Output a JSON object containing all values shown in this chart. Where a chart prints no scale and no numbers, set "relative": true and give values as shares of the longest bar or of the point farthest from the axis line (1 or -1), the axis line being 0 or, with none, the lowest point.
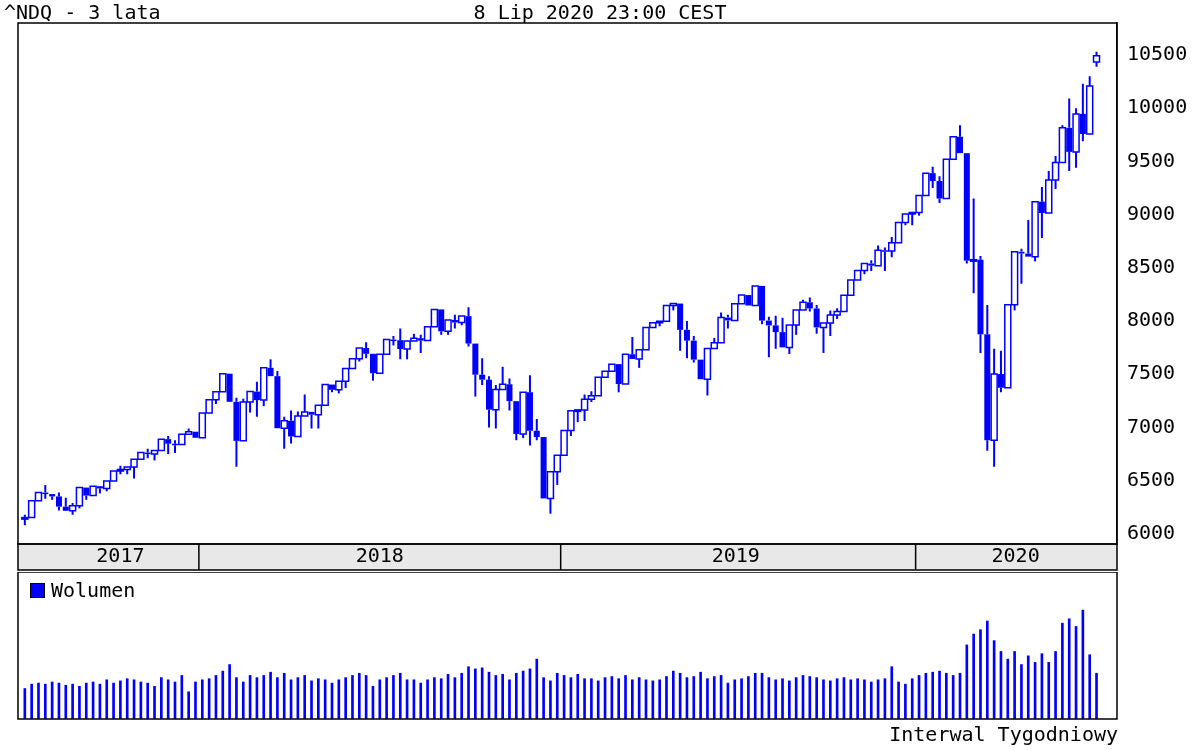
{
  "chart_data": [
    {
      "type": "candlestick",
      "title": "^NDQ - 3 lata",
      "subtitle": "8 Lip 2020 23:00 CEST",
      "color": "#0000ff",
      "x": [
        "2017-07-03",
        "2017-07-10",
        "2017-07-17",
        "2017-07-24",
        "2017-07-31",
        "2017-08-07",
        "2017-08-14",
        "2017-08-21",
        "2017-08-28",
        "2017-09-04",
        "2017-09-11",
        "2017-09-18",
        "2017-09-25",
        "2017-10-02",
        "2017-10-09",
        "2017-10-16",
        "2017-10-23",
        "2017-10-30",
        "2017-11-06",
        "2017-11-13",
        "2017-11-20",
        "2017-11-27",
        "2017-12-04",
        "2017-12-11",
        "2017-12-18",
        "2017-12-25",
        "2018-01-01",
        "2018-01-08",
        "2018-01-15",
        "2018-01-22",
        "2018-01-29",
        "2018-02-05",
        "2018-02-12",
        "2018-02-19",
        "2018-02-26",
        "2018-03-05",
        "2018-03-12",
        "2018-03-19",
        "2018-03-26",
        "2018-04-02",
        "2018-04-09",
        "2018-04-16",
        "2018-04-23",
        "2018-04-30",
        "2018-05-07",
        "2018-05-14",
        "2018-05-21",
        "2018-05-28",
        "2018-06-04",
        "2018-06-11",
        "2018-06-18",
        "2018-06-25",
        "2018-07-02",
        "2018-07-09",
        "2018-07-16",
        "2018-07-23",
        "2018-07-30",
        "2018-08-06",
        "2018-08-13",
        "2018-08-20",
        "2018-08-27",
        "2018-09-03",
        "2018-09-10",
        "2018-09-17",
        "2018-09-24",
        "2018-10-01",
        "2018-10-08",
        "2018-10-15",
        "2018-10-22",
        "2018-10-29",
        "2018-11-05",
        "2018-11-12",
        "2018-11-19",
        "2018-11-26",
        "2018-12-03",
        "2018-12-10",
        "2018-12-17",
        "2018-12-24",
        "2018-12-31",
        "2019-01-07",
        "2019-01-14",
        "2019-01-21",
        "2019-01-28",
        "2019-02-04",
        "2019-02-11",
        "2019-02-18",
        "2019-02-25",
        "2019-03-04",
        "2019-03-11",
        "2019-03-18",
        "2019-03-25",
        "2019-04-01",
        "2019-04-08",
        "2019-04-15",
        "2019-04-22",
        "2019-04-29",
        "2019-05-06",
        "2019-05-13",
        "2019-05-20",
        "2019-05-27",
        "2019-06-03",
        "2019-06-10",
        "2019-06-17",
        "2019-06-24",
        "2019-07-01",
        "2019-07-08",
        "2019-07-15",
        "2019-07-22",
        "2019-07-29",
        "2019-08-05",
        "2019-08-12",
        "2019-08-19",
        "2019-08-26",
        "2019-09-02",
        "2019-09-09",
        "2019-09-16",
        "2019-09-23",
        "2019-09-30",
        "2019-10-07",
        "2019-10-14",
        "2019-10-21",
        "2019-10-28",
        "2019-11-04",
        "2019-11-11",
        "2019-11-18",
        "2019-11-25",
        "2019-12-02",
        "2019-12-09",
        "2019-12-16",
        "2019-12-23",
        "2019-12-30",
        "2020-01-06",
        "2020-01-13",
        "2020-01-20",
        "2020-01-27",
        "2020-02-03",
        "2020-02-10",
        "2020-02-17",
        "2020-02-24",
        "2020-03-02",
        "2020-03-09",
        "2020-03-16",
        "2020-03-23",
        "2020-03-30",
        "2020-04-06",
        "2020-04-13",
        "2020-04-20",
        "2020-04-27",
        "2020-05-04",
        "2020-05-11",
        "2020-05-18",
        "2020-05-25",
        "2020-06-01",
        "2020-06-08",
        "2020-06-15",
        "2020-06-22",
        "2020-06-29",
        "2020-07-06"
      ],
      "ohlc": [
        [
          6140,
          6180,
          6080,
          6153
        ],
        [
          6153,
          6320,
          6150,
          6312
        ],
        [
          6312,
          6390,
          6300,
          6388
        ],
        [
          6388,
          6460,
          6330,
          6374
        ],
        [
          6374,
          6374,
          6320,
          6352
        ],
        [
          6352,
          6390,
          6220,
          6256
        ],
        [
          6256,
          6340,
          6200,
          6217
        ],
        [
          6217,
          6290,
          6180,
          6265
        ],
        [
          6265,
          6440,
          6240,
          6435
        ],
        [
          6435,
          6435,
          6320,
          6360
        ],
        [
          6360,
          6460,
          6360,
          6448
        ],
        [
          6448,
          6448,
          6380,
          6427
        ],
        [
          6427,
          6500,
          6400,
          6496
        ],
        [
          6496,
          6600,
          6490,
          6590
        ],
        [
          6590,
          6640,
          6560,
          6606
        ],
        [
          6606,
          6640,
          6560,
          6629
        ],
        [
          6629,
          6710,
          6520,
          6701
        ],
        [
          6701,
          6770,
          6690,
          6764
        ],
        [
          6764,
          6800,
          6710,
          6751
        ],
        [
          6751,
          6800,
          6690,
          6783
        ],
        [
          6783,
          6900,
          6780,
          6890
        ],
        [
          6890,
          6920,
          6750,
          6847
        ],
        [
          6847,
          6880,
          6760,
          6840
        ],
        [
          6840,
          6950,
          6830,
          6936
        ],
        [
          6936,
          6990,
          6930,
          6960
        ],
        [
          6960,
          6970,
          6900,
          6903
        ],
        [
          6903,
          7140,
          6900,
          7136
        ],
        [
          7136,
          7270,
          7120,
          7261
        ],
        [
          7261,
          7340,
          7220,
          7336
        ],
        [
          7336,
          7510,
          7330,
          7505
        ],
        [
          7505,
          7510,
          7230,
          7241
        ],
        [
          7241,
          7280,
          6630,
          6874
        ],
        [
          6874,
          7270,
          6874,
          7239
        ],
        [
          7239,
          7350,
          7140,
          7337
        ],
        [
          7337,
          7430,
          7100,
          7257
        ],
        [
          7257,
          7570,
          7200,
          7560
        ],
        [
          7560,
          7640,
          7470,
          7482
        ],
        [
          7482,
          7530,
          6990,
          6993
        ],
        [
          6993,
          7100,
          6800,
          7063
        ],
        [
          7063,
          7160,
          6850,
          6915
        ],
        [
          6915,
          7150,
          6900,
          7107
        ],
        [
          7107,
          7310,
          7100,
          7146
        ],
        [
          7146,
          7160,
          6990,
          7120
        ],
        [
          7120,
          7220,
          6990,
          7209
        ],
        [
          7209,
          7410,
          7200,
          7403
        ],
        [
          7403,
          7410,
          7330,
          7354
        ],
        [
          7354,
          7450,
          7320,
          7433
        ],
        [
          7433,
          7560,
          7370,
          7554
        ],
        [
          7554,
          7660,
          7540,
          7646
        ],
        [
          7646,
          7760,
          7620,
          7746
        ],
        [
          7746,
          7800,
          7650,
          7692
        ],
        [
          7692,
          7700,
          7440,
          7510
        ],
        [
          7510,
          7688,
          7510,
          7688
        ],
        [
          7688,
          7830,
          7680,
          7826
        ],
        [
          7826,
          7860,
          7770,
          7820
        ],
        [
          7820,
          7930,
          7640,
          7737
        ],
        [
          7737,
          7820,
          7640,
          7812
        ],
        [
          7812,
          7880,
          7800,
          7839
        ],
        [
          7839,
          7870,
          7700,
          7816
        ],
        [
          7816,
          7950,
          7810,
          7945
        ],
        [
          7945,
          8109,
          7945,
          8109
        ],
        [
          8109,
          8110,
          7870,
          7903
        ],
        [
          7903,
          8010,
          7870,
          8010
        ],
        [
          8010,
          8060,
          7930,
          7986
        ],
        [
          7986,
          8050,
          7960,
          8046
        ],
        [
          8046,
          8130,
          7760,
          7788
        ],
        [
          7788,
          7800,
          7290,
          7496
        ],
        [
          7496,
          7650,
          7400,
          7449
        ],
        [
          7449,
          7480,
          7000,
          7167
        ],
        [
          7167,
          7400,
          6990,
          7357
        ],
        [
          7357,
          7570,
          7340,
          7406
        ],
        [
          7406,
          7460,
          7160,
          7247
        ],
        [
          7247,
          7260,
          6880,
          6939
        ],
        [
          6939,
          7340,
          6900,
          7331
        ],
        [
          7331,
          7490,
          6830,
          6969
        ],
        [
          6969,
          7080,
          6880,
          6910
        ],
        [
          6910,
          6920,
          6330,
          6333
        ],
        [
          6333,
          6590,
          6190,
          6584
        ],
        [
          6584,
          6739,
          6460,
          6739
        ],
        [
          6739,
          6990,
          6720,
          6971
        ],
        [
          6971,
          7160,
          6920,
          7157
        ],
        [
          7157,
          7180,
          7050,
          7165
        ],
        [
          7165,
          7310,
          7060,
          7264
        ],
        [
          7264,
          7340,
          7240,
          7298
        ],
        [
          7298,
          7480,
          7280,
          7472
        ],
        [
          7472,
          7528,
          7472,
          7528
        ],
        [
          7528,
          7600,
          7520,
          7595
        ],
        [
          7595,
          7600,
          7330,
          7408
        ],
        [
          7408,
          7700,
          7400,
          7688
        ],
        [
          7688,
          7850,
          7640,
          7643
        ],
        [
          7643,
          7740,
          7560,
          7729
        ],
        [
          7729,
          7940,
          7720,
          7939
        ],
        [
          7939,
          8000,
          7920,
          7984
        ],
        [
          7984,
          7998,
          7950,
          7998
        ],
        [
          7998,
          8150,
          7980,
          8146
        ],
        [
          8146,
          8180,
          8100,
          8164
        ],
        [
          8164,
          8170,
          7720,
          7917
        ],
        [
          7917,
          8000,
          7650,
          7816
        ],
        [
          7816,
          7860,
          7610,
          7637
        ],
        [
          7637,
          7637,
          7450,
          7453
        ],
        [
          7453,
          7750,
          7300,
          7742
        ],
        [
          7742,
          7840,
          7730,
          7797
        ],
        [
          7797,
          8080,
          7790,
          8032
        ],
        [
          8032,
          8060,
          7930,
          8006
        ],
        [
          8006,
          8170,
          8000,
          8162
        ],
        [
          8162,
          8244,
          8162,
          8244
        ],
        [
          8244,
          8260,
          8130,
          8146
        ],
        [
          8146,
          8340,
          8140,
          8330
        ],
        [
          8330,
          8340,
          7970,
          8004
        ],
        [
          8004,
          8040,
          7660,
          7959
        ],
        [
          7959,
          8050,
          7740,
          7896
        ],
        [
          7896,
          8030,
          7740,
          7752
        ],
        [
          7752,
          7970,
          7690,
          7963
        ],
        [
          7963,
          8120,
          7870,
          8104
        ],
        [
          8104,
          8200,
          8090,
          8176
        ],
        [
          8176,
          8220,
          8090,
          8118
        ],
        [
          8118,
          8150,
          7880,
          7940
        ],
        [
          7940,
          8000,
          7700,
          7982
        ],
        [
          7982,
          8100,
          7860,
          8057
        ],
        [
          8057,
          8120,
          8020,
          8089
        ],
        [
          8089,
          8260,
          8080,
          8243
        ],
        [
          8243,
          8390,
          8230,
          8386
        ],
        [
          8386,
          8480,
          8370,
          8475
        ],
        [
          8475,
          8540,
          8440,
          8540
        ],
        [
          8540,
          8570,
          8470,
          8520
        ],
        [
          8520,
          8710,
          8510,
          8665
        ],
        [
          8665,
          8690,
          8470,
          8657
        ],
        [
          8657,
          8790,
          8600,
          8735
        ],
        [
          8735,
          8940,
          8730,
          8925
        ],
        [
          8925,
          9020,
          8900,
          9006
        ],
        [
          9006,
          9020,
          8900,
          9020
        ],
        [
          9020,
          9179,
          8990,
          9179
        ],
        [
          9179,
          9390,
          9170,
          9389
        ],
        [
          9389,
          9450,
          9250,
          9315
        ],
        [
          9315,
          9360,
          9110,
          9151
        ],
        [
          9151,
          9530,
          9140,
          9520
        ],
        [
          9520,
          9731,
          9520,
          9731
        ],
        [
          9731,
          9840,
          9560,
          9577
        ],
        [
          9577,
          9580,
          8540,
          8567
        ],
        [
          8567,
          9150,
          8260,
          8576
        ],
        [
          8576,
          8610,
          7700,
          7875
        ],
        [
          7875,
          8150,
          6780,
          6880
        ],
        [
          6880,
          7740,
          6630,
          7502
        ],
        [
          7502,
          7720,
          7330,
          7373
        ],
        [
          7373,
          8160,
          7370,
          8153
        ],
        [
          8153,
          8660,
          8100,
          8650
        ],
        [
          8650,
          8680,
          8350,
          8634
        ],
        [
          8634,
          8950,
          8600,
          8605
        ],
        [
          8605,
          9130,
          8560,
          9121
        ],
        [
          9121,
          9260,
          8780,
          9015
        ],
        [
          9015,
          9410,
          9000,
          9325
        ],
        [
          9325,
          9550,
          9240,
          9490
        ],
        [
          9490,
          9840,
          9480,
          9815
        ],
        [
          9815,
          10090,
          9410,
          9589
        ],
        [
          9589,
          10000,
          9440,
          9946
        ],
        [
          9946,
          10230,
          9690,
          9757
        ],
        [
          9757,
          10300,
          9740,
          10208
        ],
        [
          10433,
          10530,
          10390,
          10492
        ]
      ],
      "xlim": [
        "2017-06-26",
        "2020-07-27"
      ],
      "xticks": [
        {
          "value": "2017-10-09",
          "label": "2017"
        },
        {
          "value": "2018-07-02",
          "label": "2018"
        },
        {
          "value": "2019-07-02",
          "label": "2019"
        },
        {
          "value": "2020-04-14",
          "label": "2020"
        }
      ],
      "ylim": [
        5905,
        10800
      ],
      "yticks": [
        6000,
        6500,
        7000,
        7500,
        8000,
        8500,
        9000,
        9500,
        10000,
        10500
      ]
    },
    {
      "type": "bar",
      "relative": true,
      "legend": "top left",
      "tick_labels": false,
      "xlim": [
        "2017-06-26",
        "2020-07-27"
      ],
      "x": [
        "2017-07-03",
        "2017-07-10",
        "2017-07-17",
        "2017-07-24",
        "2017-07-31",
        "2017-08-07",
        "2017-08-14",
        "2017-08-21",
        "2017-08-28",
        "2017-09-04",
        "2017-09-11",
        "2017-09-18",
        "2017-09-25",
        "2017-10-02",
        "2017-10-09",
        "2017-10-16",
        "2017-10-23",
        "2017-10-30",
        "2017-11-06",
        "2017-11-13",
        "2017-11-20",
        "2017-11-27",
        "2017-12-04",
        "2017-12-11",
        "2017-12-18",
        "2017-12-25",
        "2018-01-01",
        "2018-01-08",
        "2018-01-15",
        "2018-01-22",
        "2018-01-29",
        "2018-02-05",
        "2018-02-12",
        "2018-02-19",
        "2018-02-26",
        "2018-03-05",
        "2018-03-12",
        "2018-03-19",
        "2018-03-26",
        "2018-04-02",
        "2018-04-09",
        "2018-04-16",
        "2018-04-23",
        "2018-04-30",
        "2018-05-07",
        "2018-05-14",
        "2018-05-21",
        "2018-05-28",
        "2018-06-04",
        "2018-06-11",
        "2018-06-18",
        "2018-06-25",
        "2018-07-02",
        "2018-07-09",
        "2018-07-16",
        "2018-07-23",
        "2018-07-30",
        "2018-08-06",
        "2018-08-13",
        "2018-08-20",
        "2018-08-27",
        "2018-09-03",
        "2018-09-10",
        "2018-09-17",
        "2018-09-24",
        "2018-10-01",
        "2018-10-08",
        "2018-10-15",
        "2018-10-22",
        "2018-10-29",
        "2018-11-05",
        "2018-11-12",
        "2018-11-19",
        "2018-11-26",
        "2018-12-03",
        "2018-12-10",
        "2018-12-17",
        "2018-12-24",
        "2018-12-31",
        "2019-01-07",
        "2019-01-14",
        "2019-01-21",
        "2019-01-28",
        "2019-02-04",
        "2019-02-11",
        "2019-02-18",
        "2019-02-25",
        "2019-03-04",
        "2019-03-11",
        "2019-03-18",
        "2019-03-25",
        "2019-04-01",
        "2019-04-08",
        "2019-04-15",
        "2019-04-22",
        "2019-04-29",
        "2019-05-06",
        "2019-05-13",
        "2019-05-20",
        "2019-05-27",
        "2019-06-03",
        "2019-06-10",
        "2019-06-17",
        "2019-06-24",
        "2019-07-01",
        "2019-07-08",
        "2019-07-15",
        "2019-07-22",
        "2019-07-29",
        "2019-08-05",
        "2019-08-12",
        "2019-08-19",
        "2019-08-26",
        "2019-09-02",
        "2019-09-09",
        "2019-09-16",
        "2019-09-23",
        "2019-09-30",
        "2019-10-07",
        "2019-10-14",
        "2019-10-21",
        "2019-10-28",
        "2019-11-04",
        "2019-11-11",
        "2019-11-18",
        "2019-11-25",
        "2019-12-02",
        "2019-12-09",
        "2019-12-16",
        "2019-12-23",
        "2019-12-30",
        "2020-01-06",
        "2020-01-13",
        "2020-01-20",
        "2020-01-27",
        "2020-02-03",
        "2020-02-10",
        "2020-02-17",
        "2020-02-24",
        "2020-03-02",
        "2020-03-09",
        "2020-03-16",
        "2020-03-23",
        "2020-03-30",
        "2020-04-06",
        "2020-04-13",
        "2020-04-20",
        "2020-04-27",
        "2020-05-04",
        "2020-05-11",
        "2020-05-18",
        "2020-05-25",
        "2020-06-01",
        "2020-06-08",
        "2020-06-15",
        "2020-06-22",
        "2020-06-29",
        "2020-07-06"
      ],
      "series": [
        {
          "name": "Wolumen",
          "color": "#0000ff",
          "values": [
            0.28,
            0.32,
            0.33,
            0.32,
            0.34,
            0.33,
            0.31,
            0.32,
            0.3,
            0.33,
            0.34,
            0.32,
            0.36,
            0.33,
            0.35,
            0.37,
            0.36,
            0.34,
            0.33,
            0.3,
            0.38,
            0.36,
            0.34,
            0.4,
            0.25,
            0.34,
            0.36,
            0.37,
            0.4,
            0.44,
            0.5,
            0.38,
            0.34,
            0.4,
            0.38,
            0.4,
            0.43,
            0.38,
            0.42,
            0.36,
            0.38,
            0.4,
            0.35,
            0.37,
            0.36,
            0.33,
            0.36,
            0.38,
            0.4,
            0.42,
            0.4,
            0.3,
            0.36,
            0.38,
            0.4,
            0.42,
            0.36,
            0.36,
            0.33,
            0.36,
            0.38,
            0.37,
            0.41,
            0.38,
            0.42,
            0.48,
            0.46,
            0.47,
            0.43,
            0.4,
            0.41,
            0.36,
            0.42,
            0.44,
            0.46,
            0.55,
            0.38,
            0.35,
            0.42,
            0.4,
            0.38,
            0.41,
            0.37,
            0.37,
            0.35,
            0.38,
            0.39,
            0.37,
            0.4,
            0.36,
            0.38,
            0.36,
            0.35,
            0.36,
            0.39,
            0.44,
            0.42,
            0.38,
            0.39,
            0.43,
            0.37,
            0.39,
            0.4,
            0.33,
            0.36,
            0.37,
            0.39,
            0.42,
            0.42,
            0.38,
            0.36,
            0.37,
            0.35,
            0.38,
            0.4,
            0.39,
            0.38,
            0.36,
            0.35,
            0.37,
            0.38,
            0.36,
            0.37,
            0.36,
            0.34,
            0.36,
            0.37,
            0.48,
            0.34,
            0.32,
            0.37,
            0.4,
            0.42,
            0.43,
            0.44,
            0.42,
            0.4,
            0.42,
            0.68,
            0.78,
            0.82,
            0.9,
            0.72,
            0.62,
            0.55,
            0.62,
            0.5,
            0.58,
            0.52,
            0.6,
            0.52,
            0.62,
            0.88,
            0.92,
            0.85,
            1,
            0.59,
            0.42
          ]
        }
      ]
    },
    {
      "type": "other",
      "annotations": [
        "Interwal Tygodniowy"
      ]
    }
  ]
}
